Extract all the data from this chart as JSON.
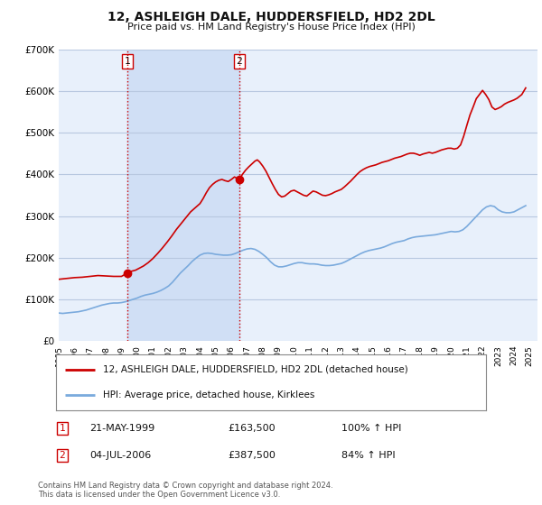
{
  "title": "12, ASHLEIGH DALE, HUDDERSFIELD, HD2 2DL",
  "subtitle": "Price paid vs. HM Land Registry's House Price Index (HPI)",
  "bg_color": "#ffffff",
  "plot_bg_color": "#e8f0fb",
  "grid_color": "#cccccc",
  "ylim": [
    0,
    700000
  ],
  "yticks": [
    0,
    100000,
    200000,
    300000,
    400000,
    500000,
    600000,
    700000
  ],
  "ytick_labels": [
    "£0",
    "£100K",
    "£200K",
    "£300K",
    "£400K",
    "£500K",
    "£600K",
    "£700K"
  ],
  "xmin": 1995.0,
  "xmax": 2025.5,
  "marker1_x": 1999.388,
  "marker1_y": 163500,
  "marker2_x": 2006.499,
  "marker2_y": 387500,
  "vline1_x": 1999.388,
  "vline2_x": 2006.499,
  "legend_label1": "12, ASHLEIGH DALE, HUDDERSFIELD, HD2 2DL (detached house)",
  "legend_label2": "HPI: Average price, detached house, Kirklees",
  "table_row1": [
    "1",
    "21-MAY-1999",
    "£163,500",
    "100% ↑ HPI"
  ],
  "table_row2": [
    "2",
    "04-JUL-2006",
    "£387,500",
    "84% ↑ HPI"
  ],
  "footer1": "Contains HM Land Registry data © Crown copyright and database right 2024.",
  "footer2": "This data is licensed under the Open Government Licence v3.0.",
  "red_color": "#cc0000",
  "blue_color": "#7aaadd",
  "vline_color": "#cc0000",
  "shaded_region_color": "#d0dff5",
  "hpi_data_years": [
    1995.0,
    1995.25,
    1995.5,
    1995.75,
    1996.0,
    1996.25,
    1996.5,
    1996.75,
    1997.0,
    1997.25,
    1997.5,
    1997.75,
    1998.0,
    1998.25,
    1998.5,
    1998.75,
    1999.0,
    1999.25,
    1999.5,
    1999.75,
    2000.0,
    2000.25,
    2000.5,
    2000.75,
    2001.0,
    2001.25,
    2001.5,
    2001.75,
    2002.0,
    2002.25,
    2002.5,
    2002.75,
    2003.0,
    2003.25,
    2003.5,
    2003.75,
    2004.0,
    2004.25,
    2004.5,
    2004.75,
    2005.0,
    2005.25,
    2005.5,
    2005.75,
    2006.0,
    2006.25,
    2006.5,
    2006.75,
    2007.0,
    2007.25,
    2007.5,
    2007.75,
    2008.0,
    2008.25,
    2008.5,
    2008.75,
    2009.0,
    2009.25,
    2009.5,
    2009.75,
    2010.0,
    2010.25,
    2010.5,
    2010.75,
    2011.0,
    2011.25,
    2011.5,
    2011.75,
    2012.0,
    2012.25,
    2012.5,
    2012.75,
    2013.0,
    2013.25,
    2013.5,
    2013.75,
    2014.0,
    2014.25,
    2014.5,
    2014.75,
    2015.0,
    2015.25,
    2015.5,
    2015.75,
    2016.0,
    2016.25,
    2016.5,
    2016.75,
    2017.0,
    2017.25,
    2017.5,
    2017.75,
    2018.0,
    2018.25,
    2018.5,
    2018.75,
    2019.0,
    2019.25,
    2019.5,
    2019.75,
    2020.0,
    2020.25,
    2020.5,
    2020.75,
    2021.0,
    2021.25,
    2021.5,
    2021.75,
    2022.0,
    2022.25,
    2022.5,
    2022.75,
    2023.0,
    2023.25,
    2023.5,
    2023.75,
    2024.0,
    2024.25,
    2024.5,
    2024.75
  ],
  "hpi_data_values": [
    67000,
    66000,
    67000,
    68000,
    69000,
    70000,
    72000,
    74000,
    77000,
    80000,
    83000,
    86000,
    88000,
    90000,
    91000,
    91000,
    92000,
    94000,
    97000,
    100000,
    103000,
    107000,
    110000,
    112000,
    114000,
    117000,
    121000,
    126000,
    132000,
    141000,
    152000,
    163000,
    172000,
    181000,
    191000,
    199000,
    206000,
    210000,
    211000,
    210000,
    208000,
    207000,
    206000,
    206000,
    207000,
    210000,
    214000,
    218000,
    221000,
    222000,
    220000,
    215000,
    208000,
    200000,
    190000,
    182000,
    178000,
    178000,
    180000,
    183000,
    186000,
    188000,
    188000,
    186000,
    185000,
    185000,
    184000,
    182000,
    181000,
    181000,
    182000,
    184000,
    186000,
    190000,
    195000,
    200000,
    205000,
    210000,
    214000,
    217000,
    219000,
    221000,
    223000,
    226000,
    230000,
    234000,
    237000,
    239000,
    241000,
    245000,
    248000,
    250000,
    251000,
    252000,
    253000,
    254000,
    255000,
    257000,
    259000,
    261000,
    263000,
    262000,
    263000,
    267000,
    275000,
    285000,
    295000,
    305000,
    315000,
    322000,
    325000,
    323000,
    315000,
    310000,
    308000,
    308000,
    310000,
    315000,
    320000,
    325000
  ],
  "house_data_years": [
    1995.0,
    1995.5,
    1996.0,
    1996.5,
    1997.0,
    1997.5,
    1998.0,
    1998.5,
    1999.0,
    1999.388,
    1999.6,
    1999.9,
    2000.1,
    2000.4,
    2000.7,
    2001.0,
    2001.3,
    2001.6,
    2001.9,
    2002.2,
    2002.5,
    2002.8,
    2003.1,
    2003.4,
    2003.7,
    2004.0,
    2004.2,
    2004.4,
    2004.6,
    2004.8,
    2005.0,
    2005.2,
    2005.4,
    2005.6,
    2005.8,
    2006.0,
    2006.2,
    2006.499,
    2006.7,
    2006.9,
    2007.1,
    2007.3,
    2007.5,
    2007.65,
    2007.8,
    2008.0,
    2008.2,
    2008.4,
    2008.6,
    2008.8,
    2009.0,
    2009.2,
    2009.4,
    2009.6,
    2009.8,
    2010.0,
    2010.2,
    2010.4,
    2010.6,
    2010.8,
    2011.0,
    2011.2,
    2011.4,
    2011.6,
    2011.8,
    2012.0,
    2012.2,
    2012.4,
    2012.6,
    2012.8,
    2013.0,
    2013.2,
    2013.4,
    2013.6,
    2013.8,
    2014.0,
    2014.2,
    2014.4,
    2014.6,
    2014.8,
    2015.0,
    2015.2,
    2015.4,
    2015.6,
    2015.8,
    2016.0,
    2016.2,
    2016.4,
    2016.6,
    2016.8,
    2017.0,
    2017.2,
    2017.4,
    2017.6,
    2017.8,
    2018.0,
    2018.2,
    2018.4,
    2018.6,
    2018.8,
    2019.0,
    2019.2,
    2019.4,
    2019.6,
    2019.8,
    2020.0,
    2020.2,
    2020.4,
    2020.6,
    2020.8,
    2021.0,
    2021.2,
    2021.4,
    2021.6,
    2021.8,
    2022.0,
    2022.2,
    2022.4,
    2022.6,
    2022.8,
    2023.0,
    2023.2,
    2023.4,
    2023.6,
    2023.8,
    2024.0,
    2024.2,
    2024.5,
    2024.75
  ],
  "house_data_values": [
    148000,
    150000,
    152000,
    153000,
    155000,
    157000,
    156000,
    155000,
    155000,
    163500,
    167000,
    170000,
    174000,
    180000,
    188000,
    198000,
    210000,
    223000,
    237000,
    252000,
    268000,
    282000,
    296000,
    310000,
    320000,
    330000,
    342000,
    356000,
    368000,
    376000,
    382000,
    386000,
    388000,
    385000,
    383000,
    388000,
    394000,
    387500,
    400000,
    410000,
    418000,
    425000,
    432000,
    435000,
    430000,
    420000,
    408000,
    393000,
    378000,
    364000,
    352000,
    346000,
    348000,
    354000,
    360000,
    362000,
    358000,
    354000,
    350000,
    348000,
    354000,
    360000,
    358000,
    354000,
    350000,
    349000,
    351000,
    354000,
    358000,
    361000,
    364000,
    370000,
    377000,
    384000,
    392000,
    400000,
    407000,
    412000,
    416000,
    419000,
    421000,
    423000,
    426000,
    429000,
    431000,
    433000,
    436000,
    439000,
    441000,
    443000,
    446000,
    449000,
    451000,
    451000,
    449000,
    446000,
    449000,
    451000,
    453000,
    451000,
    453000,
    456000,
    459000,
    461000,
    463000,
    463000,
    461000,
    463000,
    471000,
    492000,
    518000,
    543000,
    562000,
    582000,
    592000,
    602000,
    592000,
    580000,
    562000,
    556000,
    559000,
    563000,
    569000,
    573000,
    576000,
    579000,
    583000,
    592000,
    608000
  ]
}
